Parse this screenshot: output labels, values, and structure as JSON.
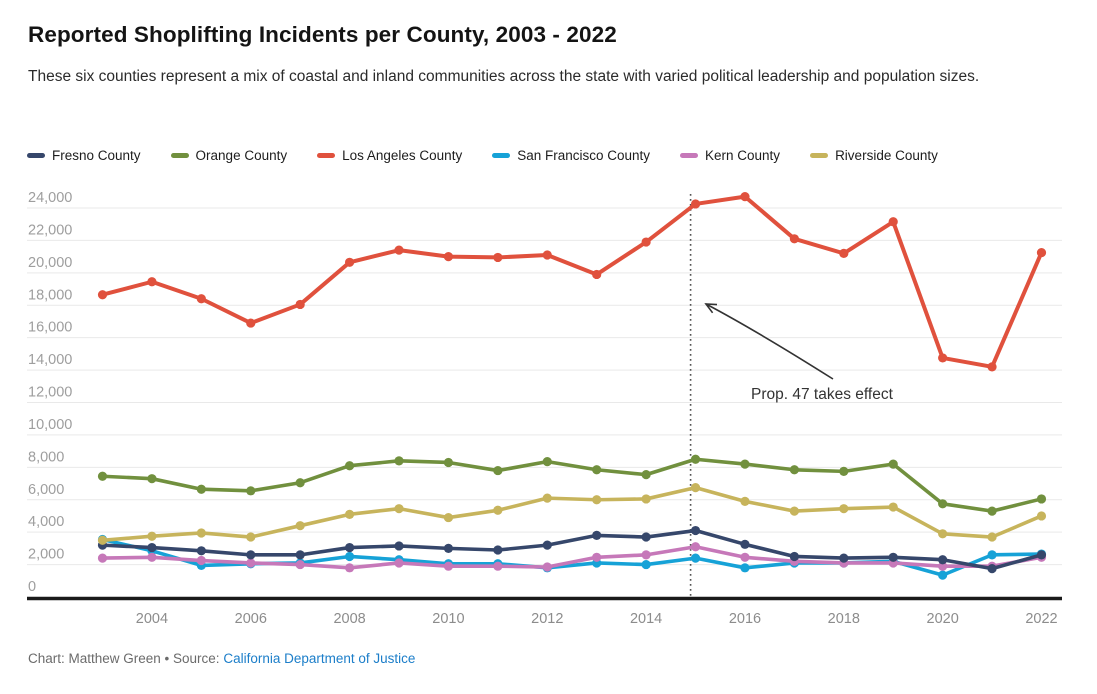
{
  "chart_data": {
    "type": "line",
    "title": "Reported Shoplifting Incidents per County, 2003 - 2022",
    "subtitle": "These six counties represent a mix of coastal and inland communities across the state with varied political leadership and population sizes.",
    "xlabel": "",
    "ylabel": "",
    "grid": true,
    "legend_position": "top",
    "x": [
      2003,
      2004,
      2005,
      2006,
      2007,
      2008,
      2009,
      2010,
      2011,
      2012,
      2013,
      2014,
      2015,
      2016,
      2017,
      2018,
      2019,
      2020,
      2021,
      2022
    ],
    "series": [
      {
        "name": "Fresno County",
        "color": "#36476b",
        "values": [
          3200,
          3050,
          2850,
          2600,
          2600,
          3050,
          3150,
          3000,
          2900,
          3200,
          3800,
          3700,
          4100,
          3250,
          2500,
          2400,
          2450,
          2300,
          1750,
          2600
        ]
      },
      {
        "name": "Orange County",
        "color": "#71903e",
        "values": [
          7450,
          7300,
          6650,
          6550,
          7050,
          8100,
          8400,
          8300,
          7800,
          8350,
          7850,
          7550,
          8500,
          8200,
          7850,
          7750,
          8200,
          5750,
          5300,
          6050
        ]
      },
      {
        "name": "Los Angeles County",
        "color": "#e0513d",
        "values": [
          18650,
          19450,
          18400,
          16900,
          18050,
          20650,
          21400,
          21000,
          20950,
          21100,
          19900,
          21900,
          24250,
          24700,
          22100,
          21200,
          23150,
          14750,
          14200,
          21250
        ]
      },
      {
        "name": "San Francisco County",
        "color": "#16a2d7",
        "values": [
          3550,
          2850,
          1950,
          2050,
          2100,
          2500,
          2300,
          2050,
          2050,
          1800,
          2100,
          2000,
          2400,
          1800,
          2100,
          2100,
          2200,
          1350,
          2600,
          2650
        ]
      },
      {
        "name": "Kern County",
        "color": "#c678b9",
        "values": [
          2400,
          2450,
          2250,
          2100,
          2000,
          1800,
          2100,
          1900,
          1900,
          1850,
          2450,
          2600,
          3100,
          2450,
          2200,
          2100,
          2100,
          1900,
          1900,
          2450
        ]
      },
      {
        "name": "Riverside County",
        "color": "#c7b45c",
        "values": [
          3500,
          3750,
          3950,
          3700,
          4400,
          5100,
          5450,
          4900,
          5350,
          6100,
          6000,
          6050,
          6750,
          5900,
          5300,
          5450,
          5550,
          3900,
          3700,
          5000
        ]
      }
    ],
    "y_axis": {
      "min": 0,
      "max": 24000,
      "tick_step": 2000,
      "tick_labels": [
        "0",
        "2,000",
        "4,000",
        "6,000",
        "8,000",
        "10,000",
        "12,000",
        "14,000",
        "16,000",
        "18,000",
        "20,000",
        "22,000",
        "24,000"
      ]
    },
    "x_axis": {
      "ticks": [
        2004,
        2006,
        2008,
        2010,
        2012,
        2014,
        2016,
        2018,
        2020,
        2022
      ]
    },
    "annotation": {
      "label": "Prop. 47 takes effect",
      "marker_year": 2014.9
    }
  },
  "footer": {
    "credit": "Chart: Matthew Green • Source:",
    "source_link": "California Department of Justice"
  }
}
